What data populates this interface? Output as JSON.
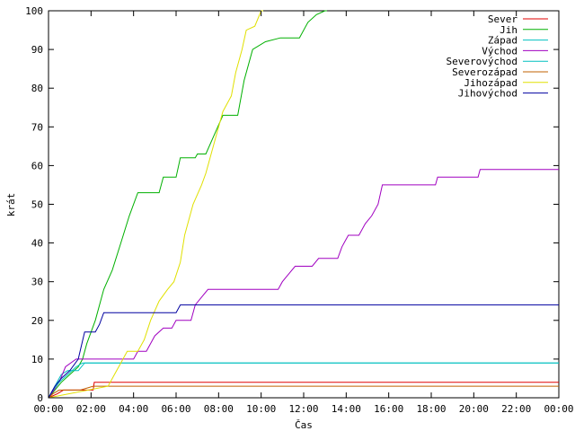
{
  "chart_data": {
    "type": "line",
    "xlabel": "Čas",
    "ylabel": "krát",
    "xlim": [
      0,
      24
    ],
    "ylim": [
      0,
      100
    ],
    "x_ticks": [
      {
        "value": 0,
        "label": "00:00"
      },
      {
        "value": 2,
        "label": "02:00"
      },
      {
        "value": 4,
        "label": "04:00"
      },
      {
        "value": 6,
        "label": "06:00"
      },
      {
        "value": 8,
        "label": "08:00"
      },
      {
        "value": 10,
        "label": "10:00"
      },
      {
        "value": 12,
        "label": "12:00"
      },
      {
        "value": 14,
        "label": "14:00"
      },
      {
        "value": 16,
        "label": "16:00"
      },
      {
        "value": 18,
        "label": "18:00"
      },
      {
        "value": 20,
        "label": "20:00"
      },
      {
        "value": 22,
        "label": "22:00"
      },
      {
        "value": 24,
        "label": "00:00"
      }
    ],
    "y_ticks": [
      0,
      10,
      20,
      30,
      40,
      50,
      60,
      70,
      80,
      90,
      100
    ],
    "grid": false,
    "legend": "top-right",
    "series": [
      {
        "name": "Sever",
        "color": "#e00000",
        "points": [
          [
            0,
            0
          ],
          [
            0.4,
            1
          ],
          [
            0.7,
            2
          ],
          [
            2.1,
            2
          ],
          [
            2.15,
            4
          ],
          [
            24,
            4
          ]
        ]
      },
      {
        "name": "Jih",
        "color": "#00b000",
        "points": [
          [
            0,
            0
          ],
          [
            0.3,
            2
          ],
          [
            0.6,
            4
          ],
          [
            1.0,
            6
          ],
          [
            1.4,
            8
          ],
          [
            1.6,
            10
          ],
          [
            1.8,
            14
          ],
          [
            2.2,
            20
          ],
          [
            2.6,
            28
          ],
          [
            3.0,
            33
          ],
          [
            3.4,
            40
          ],
          [
            3.8,
            47
          ],
          [
            4.2,
            53
          ],
          [
            5.2,
            53
          ],
          [
            5.4,
            57
          ],
          [
            6.0,
            57
          ],
          [
            6.2,
            62
          ],
          [
            6.9,
            62
          ],
          [
            7.0,
            63
          ],
          [
            7.4,
            63
          ],
          [
            7.8,
            68
          ],
          [
            8.2,
            73
          ],
          [
            8.9,
            73
          ],
          [
            9.2,
            82
          ],
          [
            9.6,
            90
          ],
          [
            10.2,
            92
          ],
          [
            10.9,
            93
          ],
          [
            11.8,
            93
          ],
          [
            12.2,
            97
          ],
          [
            12.6,
            99
          ],
          [
            13.0,
            100
          ],
          [
            13.1,
            100
          ]
        ]
      },
      {
        "name": "Západ",
        "color": "#00c0c0",
        "points": [
          [
            0,
            0
          ],
          [
            0.3,
            3
          ],
          [
            0.6,
            6
          ],
          [
            0.9,
            7
          ],
          [
            1.4,
            7
          ],
          [
            1.7,
            9
          ],
          [
            24,
            9
          ]
        ]
      },
      {
        "name": "Východ",
        "color": "#a000c0",
        "points": [
          [
            0,
            0
          ],
          [
            0.5,
            4
          ],
          [
            0.8,
            8
          ],
          [
            1.3,
            10
          ],
          [
            4.0,
            10
          ],
          [
            4.2,
            12
          ],
          [
            4.6,
            12
          ],
          [
            5.0,
            16
          ],
          [
            5.4,
            18
          ],
          [
            5.8,
            18
          ],
          [
            6.0,
            20
          ],
          [
            6.7,
            20
          ],
          [
            6.9,
            24
          ],
          [
            7.2,
            26
          ],
          [
            7.5,
            28
          ],
          [
            10.8,
            28
          ],
          [
            11.0,
            30
          ],
          [
            11.3,
            32
          ],
          [
            11.6,
            34
          ],
          [
            12.4,
            34
          ],
          [
            12.7,
            36
          ],
          [
            13.6,
            36
          ],
          [
            13.8,
            39
          ],
          [
            14.1,
            42
          ],
          [
            14.6,
            42
          ],
          [
            14.9,
            45
          ],
          [
            15.2,
            47
          ],
          [
            15.5,
            50
          ],
          [
            15.7,
            55
          ],
          [
            18.2,
            55
          ],
          [
            18.3,
            57
          ],
          [
            20.2,
            57
          ],
          [
            20.3,
            59
          ],
          [
            24,
            59
          ]
        ]
      },
      {
        "name": "Severovýchod",
        "color": "#00c0c0",
        "points": [
          [
            0,
            0
          ],
          [
            0.2,
            2
          ],
          [
            0.5,
            4
          ],
          [
            0.9,
            6
          ],
          [
            1.3,
            8
          ],
          [
            1.6,
            9
          ],
          [
            24,
            9
          ]
        ]
      },
      {
        "name": "Severozápad",
        "color": "#c06000",
        "points": [
          [
            0,
            0
          ],
          [
            0.2,
            1
          ],
          [
            0.5,
            2
          ],
          [
            1.5,
            2
          ],
          [
            2.1,
            3
          ],
          [
            24,
            3
          ]
        ]
      },
      {
        "name": "Jihozápad",
        "color": "#e0e000",
        "points": [
          [
            0,
            0
          ],
          [
            2.8,
            3
          ],
          [
            3.1,
            6
          ],
          [
            3.4,
            9
          ],
          [
            3.7,
            12
          ],
          [
            4.2,
            12
          ],
          [
            4.5,
            15
          ],
          [
            4.8,
            20
          ],
          [
            5.2,
            25
          ],
          [
            5.6,
            28
          ],
          [
            5.9,
            30
          ],
          [
            6.2,
            35
          ],
          [
            6.4,
            42
          ],
          [
            6.8,
            50
          ],
          [
            7.2,
            55
          ],
          [
            7.4,
            58
          ],
          [
            7.8,
            66
          ],
          [
            8.2,
            74
          ],
          [
            8.6,
            78
          ],
          [
            8.8,
            84
          ],
          [
            9.1,
            90
          ],
          [
            9.3,
            95
          ],
          [
            9.7,
            96
          ],
          [
            10.0,
            100
          ],
          [
            10.1,
            100
          ]
        ]
      },
      {
        "name": "Jihovýchod",
        "color": "#0000a0",
        "points": [
          [
            0,
            0
          ],
          [
            0.3,
            3
          ],
          [
            0.6,
            5
          ],
          [
            1.0,
            7
          ],
          [
            1.4,
            10
          ],
          [
            1.7,
            17
          ],
          [
            2.2,
            17
          ],
          [
            2.4,
            19
          ],
          [
            2.6,
            22
          ],
          [
            6.0,
            22
          ],
          [
            6.2,
            24
          ],
          [
            24,
            24
          ]
        ]
      }
    ]
  }
}
